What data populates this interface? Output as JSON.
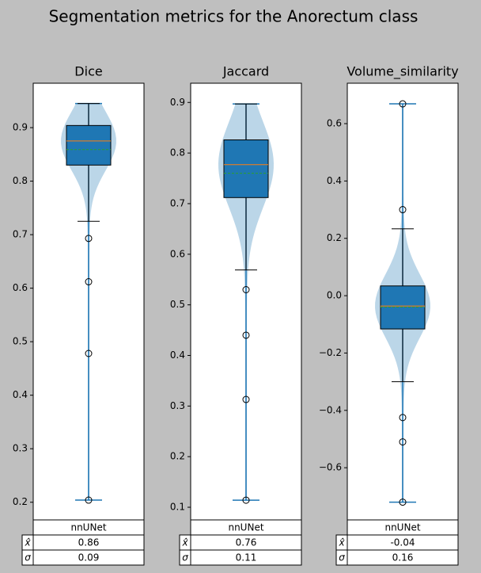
{
  "title": "Segmentation metrics for the Anorectum class",
  "chart_data": [
    {
      "type": "violin-box",
      "title": "Dice",
      "ylim": [
        0.167,
        0.983
      ],
      "yticks": [
        0.2,
        0.3,
        0.4,
        0.5,
        0.6,
        0.7,
        0.8,
        0.9
      ],
      "stats": {
        "whislo": 0.725,
        "q1": 0.83,
        "med": 0.875,
        "mean": 0.859,
        "q3": 0.904,
        "whishi": 0.945
      },
      "fliers": [
        0.693,
        0.612,
        0.478,
        0.204
      ],
      "extrema": [
        0.204,
        0.945
      ],
      "box_color": "#1f77b4",
      "median_color": "#ff7f0e",
      "mean_color": "#2ca02c",
      "table": {
        "column": "nnUNet",
        "rows": [
          {
            "label": "x̂",
            "value": 0.86
          },
          {
            "label": "σ",
            "value": 0.09
          }
        ]
      }
    },
    {
      "type": "violin-box",
      "title": "Jaccard",
      "ylim": [
        0.075,
        0.938
      ],
      "yticks": [
        0.1,
        0.2,
        0.3,
        0.4,
        0.5,
        0.6,
        0.7,
        0.8,
        0.9
      ],
      "stats": {
        "whislo": 0.569,
        "q1": 0.712,
        "med": 0.777,
        "mean": 0.76,
        "q3": 0.826,
        "whishi": 0.897
      },
      "fliers": [
        0.53,
        0.44,
        0.313,
        0.114
      ],
      "extrema": [
        0.114,
        0.897
      ],
      "box_color": "#1f77b4",
      "median_color": "#ff7f0e",
      "mean_color": "#2ca02c",
      "table": {
        "column": "nnUNet",
        "rows": [
          {
            "label": "x̂",
            "value": 0.76
          },
          {
            "label": "σ",
            "value": 0.11
          }
        ]
      }
    },
    {
      "type": "violin-box",
      "title": "Volume_similarity",
      "ylim": [
        -0.782,
        0.741
      ],
      "yticks": [
        {
          "value": -0.6,
          "label": "−0.6"
        },
        {
          "value": -0.4,
          "label": "−0.4"
        },
        {
          "value": -0.2,
          "label": "−0.2"
        },
        {
          "value": 0,
          "label": "0.0"
        },
        0.2,
        0.4,
        0.6
      ],
      "stats": {
        "whislo": -0.3,
        "q1": -0.116,
        "med": -0.036,
        "mean": -0.04,
        "q3": 0.034,
        "whishi": 0.233
      },
      "fliers": [
        0.669,
        0.3,
        -0.425,
        -0.51,
        -0.72
      ],
      "extrema": [
        -0.72,
        0.669
      ],
      "box_color": "#1f77b4",
      "median_color": "#ff7f0e",
      "mean_color": "#2ca02c",
      "table": {
        "column": "nnUNet",
        "rows": [
          {
            "label": "x̂",
            "value": -0.04
          },
          {
            "label": "σ",
            "value": 0.16
          }
        ]
      }
    }
  ]
}
